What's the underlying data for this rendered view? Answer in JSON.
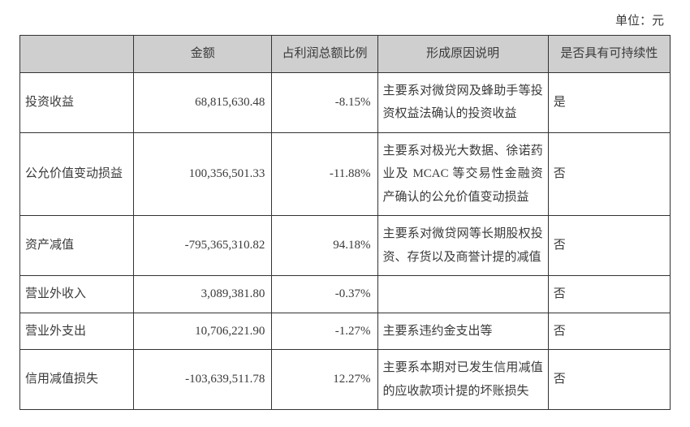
{
  "unit_label": "单位：元",
  "table": {
    "columns": [
      "",
      "金额",
      "占利润总额比例",
      "形成原因说明",
      "是否具有可持续性"
    ],
    "rows": [
      {
        "label": "投资收益",
        "amount": "68,815,630.48",
        "ratio": "-8.15%",
        "desc": "主要系对微贷网及蜂助手等投资权益法确认的投资收益",
        "sustain": "是"
      },
      {
        "label": "公允价值变动损益",
        "amount": "100,356,501.33",
        "ratio": "-11.88%",
        "desc": "主要系对极光大数据、徐诺药业及 MCAC 等交易性金融资产确认的公允价值变动损益",
        "sustain": "否"
      },
      {
        "label": "资产减值",
        "amount": "-795,365,310.82",
        "ratio": "94.18%",
        "desc": "主要系对微贷网等长期股权投资、存货以及商誉计提的减值",
        "sustain": "否"
      },
      {
        "label": "营业外收入",
        "amount": "3,089,381.80",
        "ratio": "-0.37%",
        "desc": "",
        "sustain": "否"
      },
      {
        "label": "营业外支出",
        "amount": "10,706,221.90",
        "ratio": "-1.27%",
        "desc": "主要系违约金支出等",
        "sustain": "否"
      },
      {
        "label": "信用减值损失",
        "amount": "-103,639,511.78",
        "ratio": "12.27%",
        "desc": "主要系本期对已发生信用减值的应收款项计提的坏账损失",
        "sustain": "否"
      }
    ]
  },
  "colors": {
    "header_bg": "#cfcfcf",
    "border": "#333333",
    "text": "#3a3a3a",
    "background": "#ffffff"
  }
}
